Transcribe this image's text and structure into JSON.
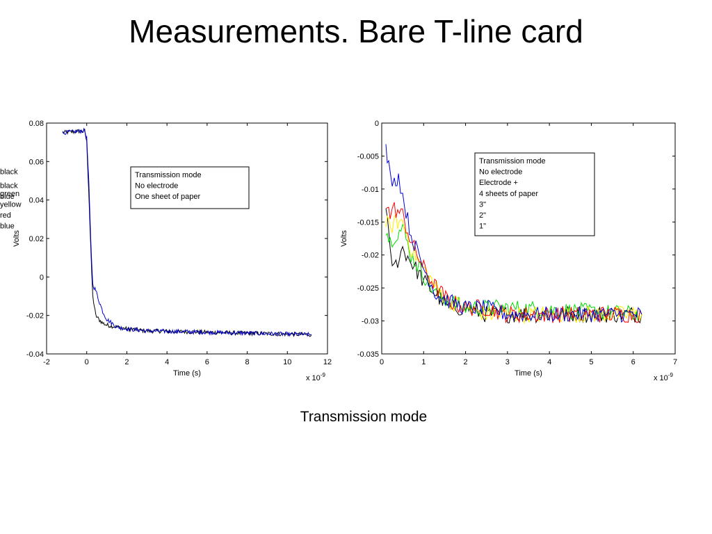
{
  "slide": {
    "title": "Measurements. Bare T-line card",
    "caption": "Transmission mode"
  },
  "chart_data": [
    {
      "type": "line",
      "xlabel": "Time (s)",
      "ylabel": "Volts",
      "x_exponent_label": "x 10",
      "x_exponent_power": "-9",
      "xlim": [
        -2,
        12
      ],
      "ylim": [
        -0.04,
        0.08
      ],
      "xticks": [
        -2,
        0,
        2,
        4,
        6,
        8,
        10,
        12
      ],
      "yticks": [
        -0.04,
        -0.02,
        0,
        0.02,
        0.04,
        0.06,
        0.08
      ],
      "xtick_labels": [
        "-2",
        "0",
        "2",
        "4",
        "6",
        "8",
        "10",
        "12"
      ],
      "ytick_labels": [
        "-0.04",
        "-0.02",
        "0",
        "0.02",
        "0.04",
        "0.06",
        "0.08"
      ],
      "grid": false,
      "legend_placement": "upper-center",
      "legend": [
        [
          "Transmission mode",
          ""
        ],
        [
          "No electrode",
          "black"
        ],
        [
          "One sheet of paper",
          "blue"
        ]
      ],
      "series": [
        {
          "color": "#000000",
          "noise": 0.0011,
          "x": [
            -1.2,
            -0.1,
            0.0,
            0.1,
            0.2,
            0.3,
            0.45,
            0.6,
            0.8,
            1.0,
            1.5,
            2.0,
            3.0,
            11.2
          ],
          "y": [
            0.075,
            0.076,
            0.07,
            0.045,
            0.015,
            -0.01,
            -0.02,
            -0.022,
            -0.024,
            -0.025,
            -0.026,
            -0.027,
            -0.028,
            -0.03
          ]
        },
        {
          "color": "#0000cc",
          "noise": 0.0011,
          "x": [
            -1.2,
            -0.1,
            0.0,
            0.1,
            0.2,
            0.3,
            0.45,
            0.6,
            0.8,
            1.0,
            1.5,
            2.0,
            3.0,
            11.2
          ],
          "y": [
            0.075,
            0.076,
            0.072,
            0.05,
            0.02,
            -0.004,
            -0.007,
            -0.012,
            -0.018,
            -0.022,
            -0.026,
            -0.027,
            -0.028,
            -0.03
          ]
        }
      ]
    },
    {
      "type": "line",
      "xlabel": "Time (s)",
      "ylabel": "Volts",
      "x_exponent_label": "x 10",
      "x_exponent_power": "-9",
      "xlim": [
        0,
        7
      ],
      "ylim": [
        -0.035,
        0
      ],
      "xticks": [
        0,
        1,
        2,
        3,
        4,
        5,
        6,
        7
      ],
      "yticks": [
        -0.035,
        -0.03,
        -0.025,
        -0.02,
        -0.015,
        -0.01,
        -0.005,
        0
      ],
      "xtick_labels": [
        "0",
        "1",
        "2",
        "3",
        "4",
        "5",
        "6",
        "7"
      ],
      "ytick_labels": [
        "-0.035",
        "-0.03",
        "-0.025",
        "-0.02",
        "-0.015",
        "-0.01",
        "-0.005",
        "0"
      ],
      "grid": false,
      "legend_placement": "upper-right",
      "legend": [
        [
          "Transmission mode",
          ""
        ],
        [
          "No electrode",
          "black"
        ],
        [
          "Electrode +",
          ""
        ],
        [
          "4 sheets of paper",
          "green"
        ],
        [
          "3\"",
          "yellow"
        ],
        [
          "2\"",
          "red"
        ],
        [
          "1\"",
          "blue"
        ]
      ],
      "series": [
        {
          "color": "#000000",
          "noise": 0.0013,
          "x": [
            0.1,
            0.2,
            0.3,
            0.5,
            0.7,
            1.0,
            1.3,
            1.6,
            2.0,
            2.5,
            3.0,
            6.2
          ],
          "y": [
            -0.012,
            -0.02,
            -0.022,
            -0.019,
            -0.021,
            -0.024,
            -0.026,
            -0.028,
            -0.028,
            -0.029,
            -0.029,
            -0.029
          ]
        },
        {
          "color": "#00dd00",
          "noise": 0.0013,
          "x": [
            0.1,
            0.2,
            0.3,
            0.5,
            0.7,
            1.0,
            1.3,
            1.6,
            2.0,
            2.5,
            3.0,
            6.2
          ],
          "y": [
            -0.016,
            -0.018,
            -0.017,
            -0.016,
            -0.02,
            -0.023,
            -0.026,
            -0.027,
            -0.028,
            -0.028,
            -0.028,
            -0.029
          ]
        },
        {
          "color": "#ffee00",
          "noise": 0.0013,
          "x": [
            0.1,
            0.2,
            0.3,
            0.5,
            0.7,
            1.0,
            1.3,
            1.6,
            2.0,
            2.5,
            3.0,
            6.2
          ],
          "y": [
            -0.015,
            -0.016,
            -0.015,
            -0.015,
            -0.019,
            -0.022,
            -0.025,
            -0.027,
            -0.028,
            -0.029,
            -0.029,
            -0.029
          ]
        },
        {
          "color": "#ff0000",
          "noise": 0.0013,
          "x": [
            0.1,
            0.2,
            0.3,
            0.5,
            0.7,
            1.0,
            1.3,
            1.6,
            2.0,
            2.5,
            3.0,
            6.2
          ],
          "y": [
            -0.012,
            -0.014,
            -0.013,
            -0.014,
            -0.018,
            -0.022,
            -0.025,
            -0.027,
            -0.028,
            -0.028,
            -0.029,
            -0.029
          ]
        },
        {
          "color": "#0000dd",
          "noise": 0.0012,
          "x": [
            0.1,
            0.2,
            0.3,
            0.4,
            0.5,
            0.7,
            1.0,
            1.3,
            1.6,
            2.0,
            2.5,
            3.0,
            6.2
          ],
          "y": [
            -0.004,
            -0.008,
            -0.009,
            -0.008,
            -0.011,
            -0.017,
            -0.022,
            -0.026,
            -0.027,
            -0.028,
            -0.028,
            -0.029,
            -0.029
          ]
        }
      ]
    }
  ]
}
